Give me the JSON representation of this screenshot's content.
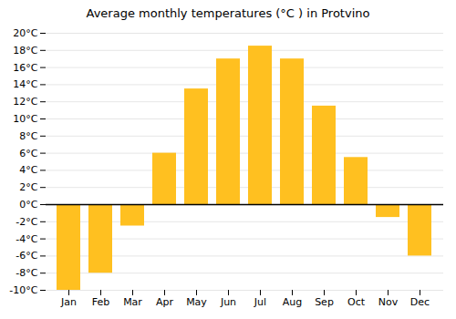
{
  "chart_data": {
    "type": "bar",
    "title": "Average monthly temperatures (°C ) in Protvino",
    "categories": [
      "Jan",
      "Feb",
      "Mar",
      "Apr",
      "May",
      "Jun",
      "Jul",
      "Aug",
      "Sep",
      "Oct",
      "Nov",
      "Dec"
    ],
    "values": [
      -10,
      -8,
      -2.5,
      6,
      13.5,
      17,
      18.5,
      17,
      11.5,
      5.5,
      -1.5,
      -6
    ],
    "color": "#FFC020",
    "ylim": [
      -10,
      20
    ],
    "yticks": [
      {
        "value": -10,
        "label": "-10°C"
      },
      {
        "value": -8,
        "label": "-8°C"
      },
      {
        "value": -6,
        "label": "-6°C"
      },
      {
        "value": -4,
        "label": "-4°C"
      },
      {
        "value": -2,
        "label": "-2°C"
      },
      {
        "value": 0,
        "label": "0°C"
      },
      {
        "value": 2,
        "label": "2°C"
      },
      {
        "value": 4,
        "label": "4°C"
      },
      {
        "value": 6,
        "label": "6°C"
      },
      {
        "value": 8,
        "label": "8°C"
      },
      {
        "value": 10,
        "label": "10°C"
      },
      {
        "value": 12,
        "label": "12°C"
      },
      {
        "value": 14,
        "label": "14°C"
      },
      {
        "value": 16,
        "label": "16°C"
      },
      {
        "value": 18,
        "label": "18°C"
      },
      {
        "value": 20,
        "label": "20°C"
      }
    ],
    "grid": true
  }
}
